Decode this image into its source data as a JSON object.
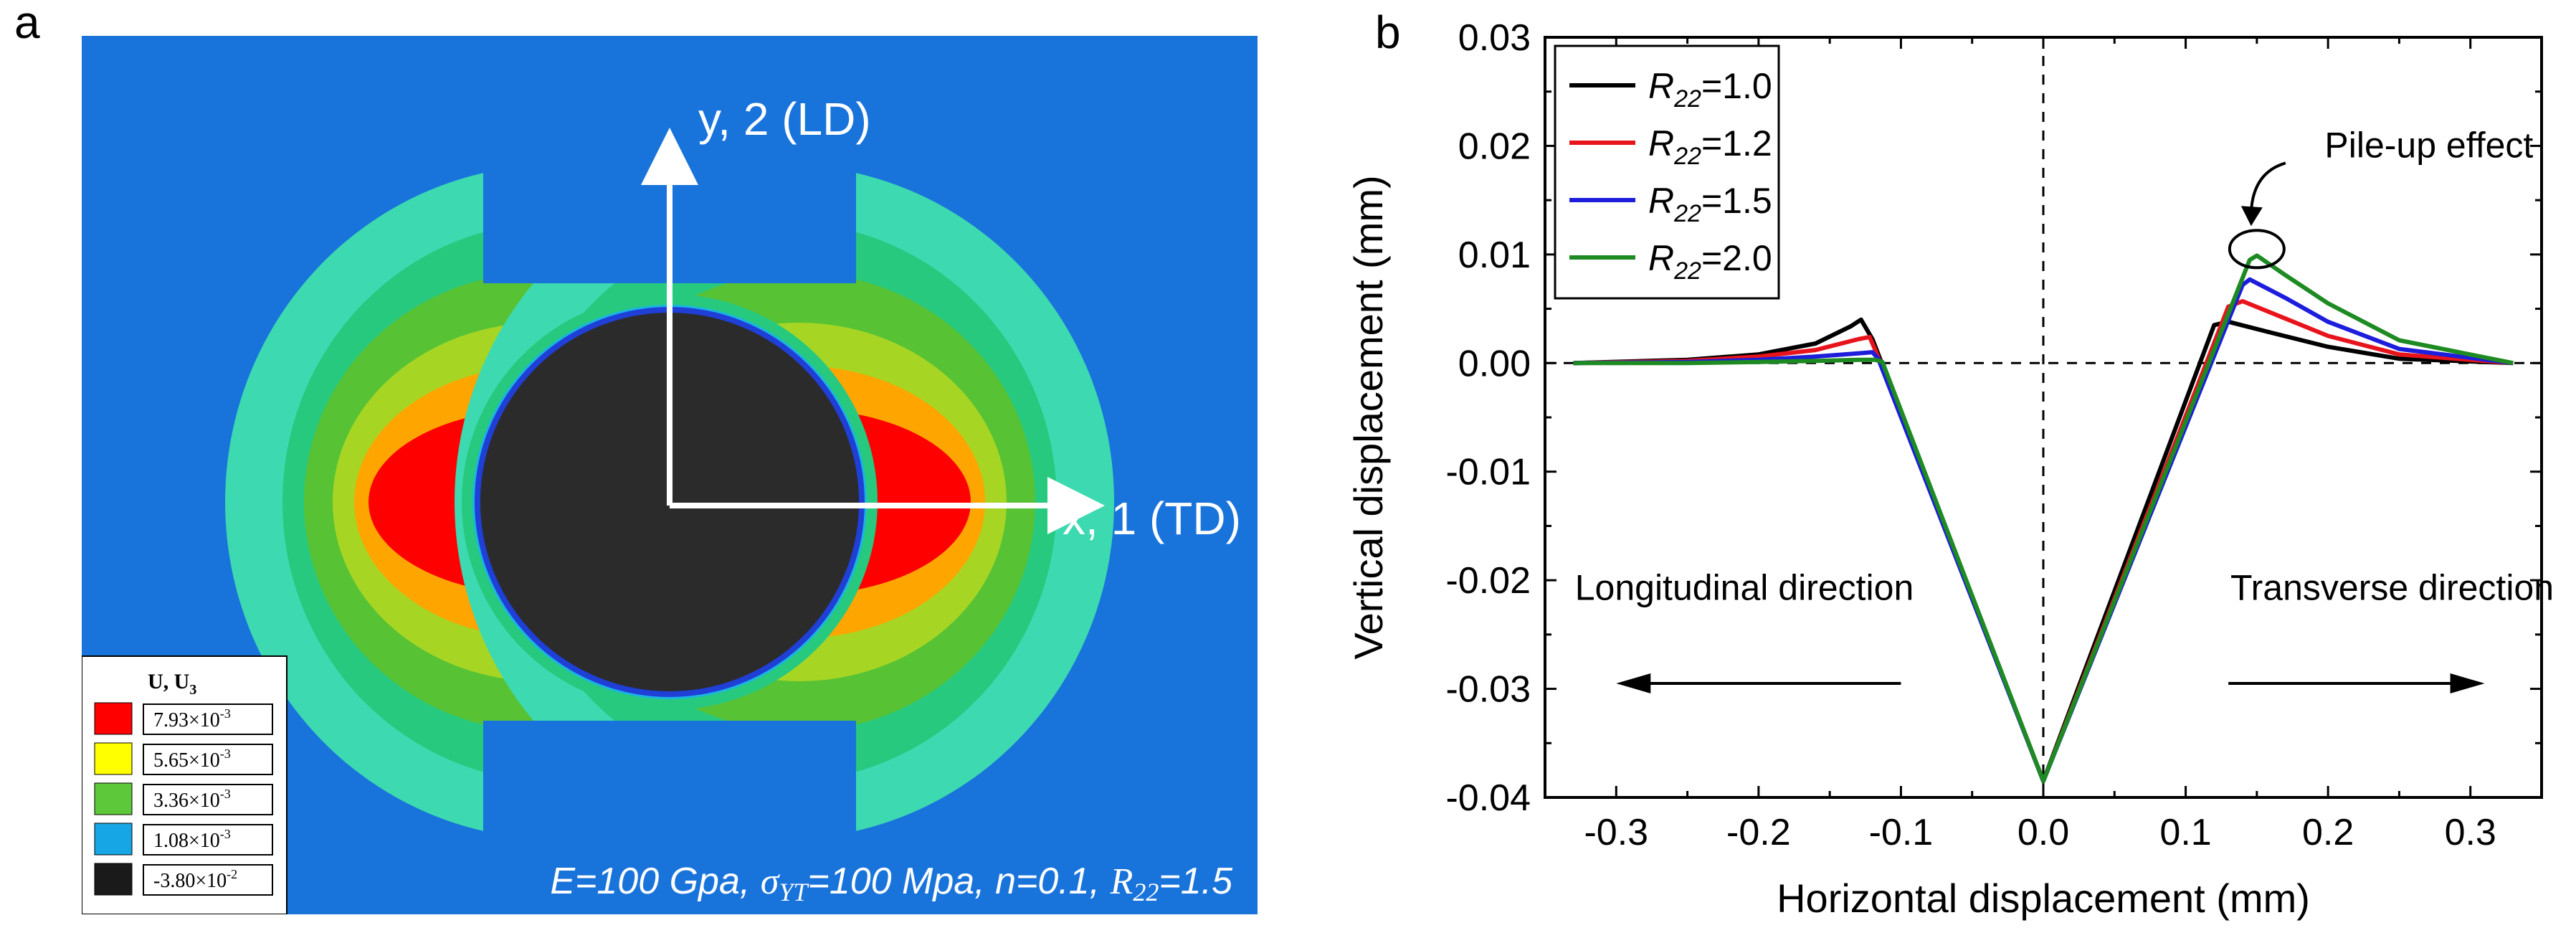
{
  "panel_a": {
    "label": "a",
    "axis_y_label": "y, 2 (LD)",
    "axis_x_label": "x, 1 (TD)",
    "legend": {
      "title": "U, U",
      "title_sub": "3",
      "items": [
        {
          "mant": "7.93×10",
          "exp": "-3",
          "color": "#ff0000"
        },
        {
          "mant": "5.65×10",
          "exp": "-3",
          "color": "#ffff00"
        },
        {
          "mant": "3.36×10",
          "exp": "-3",
          "color": "#5dc83a"
        },
        {
          "mant": "1.08×10",
          "exp": "-3",
          "color": "#16a6e6"
        },
        {
          "mant": "-3.80×10",
          "exp": "-2",
          "color": "#1a1a1a"
        }
      ]
    },
    "parameters": {
      "E": "E=100 Gpa,",
      "sigma_sym": "σ",
      "sigma_sub": "YT",
      "sigma_rest": "=100 Mpa, n=0.1,",
      "r_sym": "R",
      "r_sub": "22",
      "r_rest": "=1.5"
    },
    "colors": {
      "background": "#1873db",
      "outer": "#3dd9b0",
      "ring1": "#27c97f",
      "ring2": "#58c235",
      "ring3": "#a6d623",
      "ring4": "#ffa500",
      "core": "#ff0000",
      "indent": "#2b2b2b",
      "edge": "#1f3fd6"
    }
  },
  "chart_data": {
    "type": "line",
    "label": "b",
    "title": "",
    "xlabel": "Horizontal displacement (mm)",
    "ylabel": "Vertical displacement (mm)",
    "xlim": [
      -0.35,
      0.35
    ],
    "ylim": [
      -0.04,
      0.03
    ],
    "xticks": [
      -0.3,
      -0.2,
      -0.1,
      0.0,
      0.1,
      0.2,
      0.3
    ],
    "xtick_labels": [
      "-0.3",
      "-0.2",
      "-0.1",
      "0.0",
      "0.1",
      "0.2",
      "0.3"
    ],
    "yticks": [
      -0.04,
      -0.03,
      -0.02,
      -0.01,
      0.0,
      0.01,
      0.02,
      0.03
    ],
    "ytick_labels": [
      "-0.04",
      "-0.03",
      "-0.02",
      "-0.01",
      "0.00",
      "0.01",
      "0.02",
      "0.03"
    ],
    "legend_position": "top-left",
    "series": [
      {
        "name_sym": "R",
        "name_sub": "22",
        "name_rest": "=1.0",
        "color": "#000000",
        "x": [
          -0.33,
          -0.25,
          -0.2,
          -0.16,
          -0.135,
          -0.128,
          -0.12,
          0.0,
          0.12,
          0.13,
          0.16,
          0.2,
          0.25,
          0.33
        ],
        "y": [
          0.0,
          0.0003,
          0.0008,
          0.0018,
          0.0034,
          0.004,
          0.0022,
          -0.0385,
          0.0035,
          0.0038,
          0.0028,
          0.0015,
          0.0004,
          0.0
        ]
      },
      {
        "name_sym": "R",
        "name_sub": "22",
        "name_rest": "=1.2",
        "color": "#e8141c",
        "x": [
          -0.33,
          -0.25,
          -0.2,
          -0.16,
          -0.13,
          -0.122,
          -0.118,
          0.0,
          0.13,
          0.14,
          0.17,
          0.2,
          0.25,
          0.33
        ],
        "y": [
          0.0,
          0.0002,
          0.0006,
          0.0012,
          0.0022,
          0.0024,
          0.0012,
          -0.0385,
          0.0052,
          0.0057,
          0.0041,
          0.0025,
          0.0008,
          0.0
        ]
      },
      {
        "name_sym": "R",
        "name_sub": "22",
        "name_rest": "=1.5",
        "color": "#1d1ddc",
        "x": [
          -0.33,
          -0.25,
          -0.2,
          -0.16,
          -0.13,
          -0.12,
          -0.116,
          0.0,
          0.14,
          0.145,
          0.17,
          0.2,
          0.25,
          0.33
        ],
        "y": [
          0.0,
          0.0001,
          0.0003,
          0.0006,
          0.0009,
          0.001,
          0.0004,
          -0.0385,
          0.0072,
          0.0077,
          0.006,
          0.0038,
          0.0013,
          0.0
        ]
      },
      {
        "name_sym": "R",
        "name_sub": "22",
        "name_rest": "=2.0",
        "color": "#1d8a22",
        "x": [
          -0.33,
          -0.25,
          -0.2,
          -0.16,
          -0.13,
          -0.118,
          -0.113,
          0.0,
          0.145,
          0.15,
          0.17,
          0.2,
          0.25,
          0.33
        ],
        "y": [
          0.0,
          0.0,
          0.0001,
          0.0002,
          0.0003,
          0.0003,
          0.0001,
          -0.0385,
          0.0095,
          0.0099,
          0.0081,
          0.0055,
          0.0021,
          0.0
        ]
      }
    ],
    "annotations": {
      "pile_up": "Pile-up effect",
      "pile_up_x": 0.15,
      "pile_up_y": 0.0105,
      "longitudinal": "Longitudinal direction",
      "transverse": "Transverse direction",
      "arrow_left": {
        "x_from": -0.1,
        "x_to": -0.3,
        "y": -0.0295
      },
      "arrow_right": {
        "x_from": 0.13,
        "x_to": 0.31,
        "y": -0.0295
      }
    }
  }
}
